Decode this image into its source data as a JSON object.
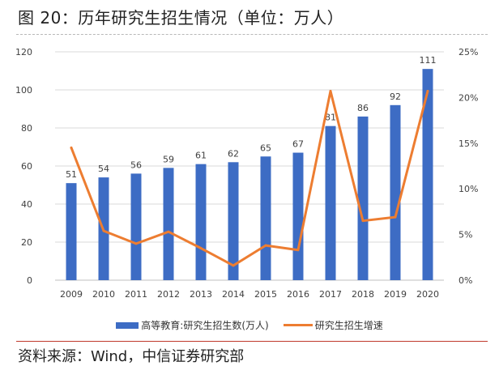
{
  "header": {
    "title": "图 20：历年研究生招生情况（单位：万人）"
  },
  "footer": {
    "source": "资料来源：Wind，中信证券研究部"
  },
  "colors": {
    "bar": "#3d6cc4",
    "line": "#ed7d31",
    "axis": "#d9d9d9",
    "text": "#404040"
  },
  "chart_data": {
    "type": "bar",
    "categories": [
      "2009",
      "2010",
      "2011",
      "2012",
      "2013",
      "2014",
      "2015",
      "2016",
      "2017",
      "2018",
      "2019",
      "2020"
    ],
    "series": [
      {
        "name": "高等教育:研究生招生数(万人)",
        "type": "bar",
        "axis": "left",
        "values": [
          51,
          54,
          56,
          59,
          61,
          62,
          65,
          67,
          81,
          86,
          92,
          111
        ],
        "labels": [
          "51",
          "54",
          "56",
          "59",
          "61",
          "62",
          "65",
          "67",
          "81",
          "86",
          "92",
          "111"
        ]
      },
      {
        "name": "研究生招生增速",
        "type": "line",
        "axis": "right",
        "values": [
          14.5,
          5.4,
          4.0,
          5.3,
          3.5,
          1.6,
          3.8,
          3.3,
          20.7,
          6.5,
          6.9,
          20.7
        ]
      }
    ],
    "yleft": {
      "min": 0,
      "max": 120,
      "ticks": [
        "0",
        "20",
        "40",
        "60",
        "80",
        "100",
        "120"
      ]
    },
    "yright": {
      "min": 0,
      "max": 25,
      "ticks": [
        "0%",
        "5%",
        "10%",
        "15%",
        "20%",
        "25%"
      ]
    },
    "grid": true,
    "legend_position": "bottom"
  }
}
